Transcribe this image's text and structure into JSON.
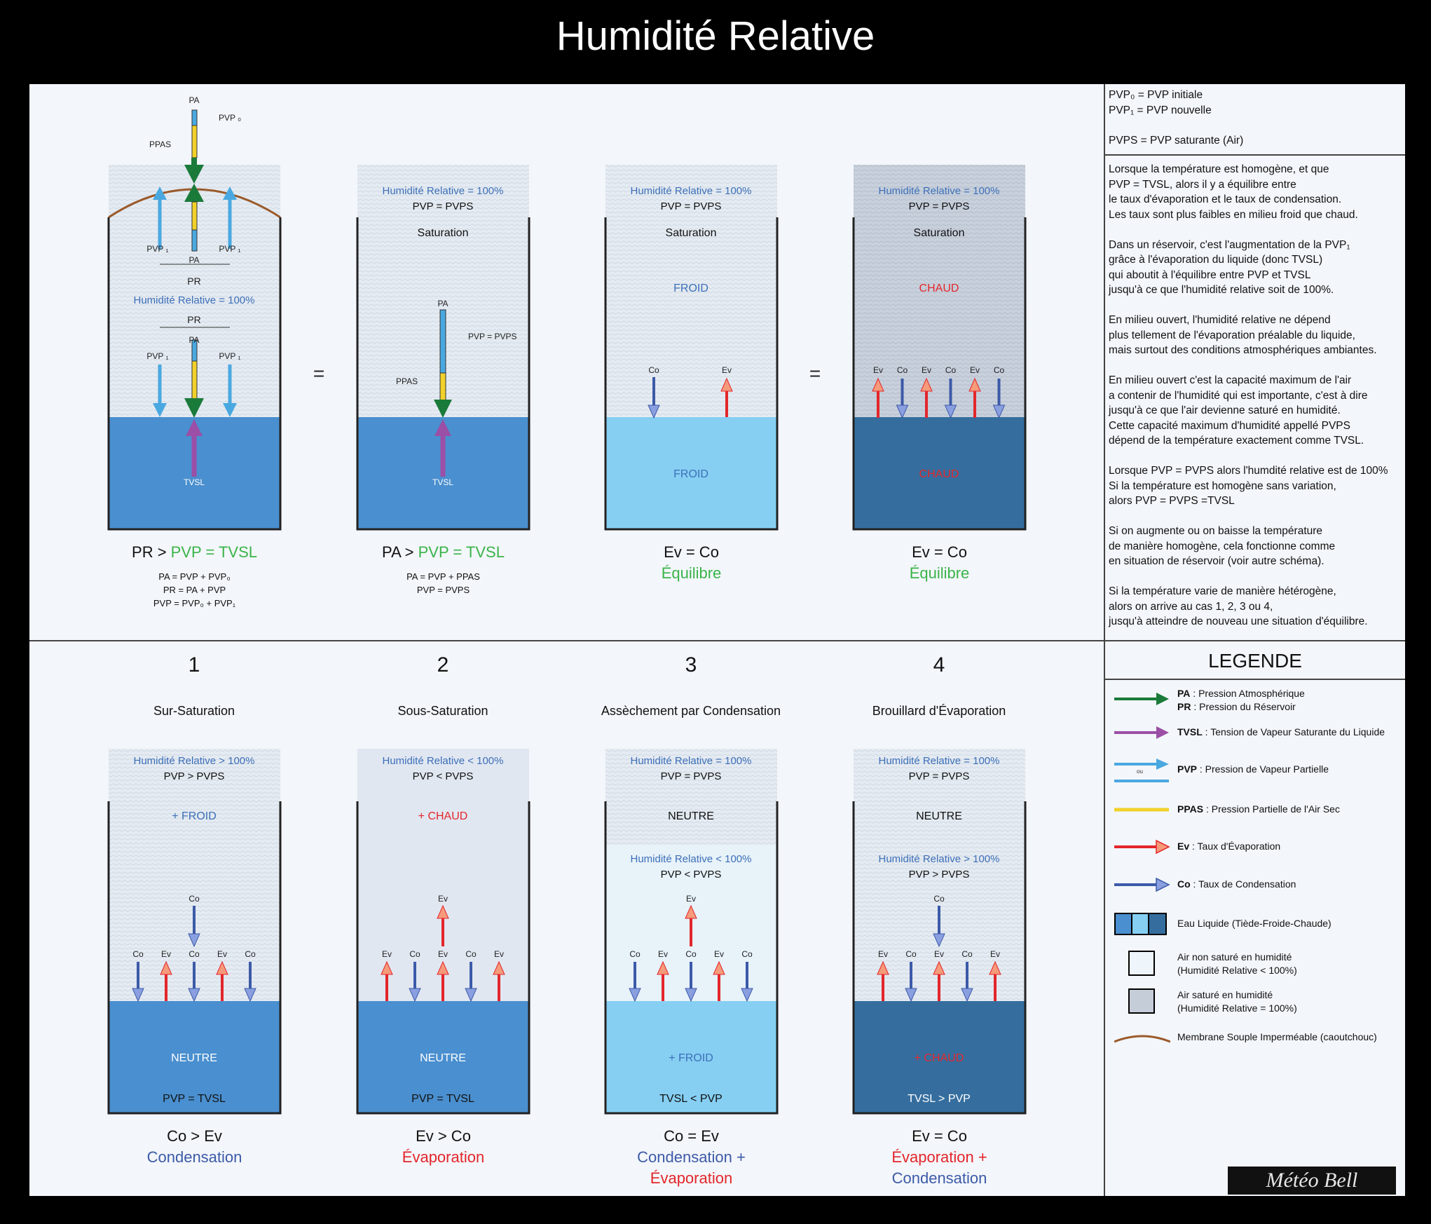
{
  "title": "Humidité Relative",
  "side": {
    "definitions": "PVP₀ = PVP initiale\nPVP₁ = PVP nouvelle\n\nPVPS = PVP saturante (Air)",
    "explanation": "Lorsque la température est homogène, et que\nPVP = TVSL, alors il y a équilibre entre\nle taux d'évaporation et le taux de condensation.\nLes taux sont plus faibles en milieu froid que chaud.\n\nDans un réservoir, c'est l'augmentation de la PVP₁\ngrâce à l'évaporation du liquide (donc TVSL)\nqui aboutit à l'équilibre entre PVP et TVSL\njusqu'à ce que l'humidité relative soit de 100%.\n\nEn milieu ouvert, l'humidité relative ne dépend\nplus tellement de l'évaporation préalable du liquide,\nmais surtout des conditions atmosphériques ambiantes.\n\nEn milieu ouvert c'est la capacité maximum de l'air\na contenir de l'humidité qui est importante, c'est à dire\njusqu'à ce que l'air devienne saturé en humidité.\nCette capacité maximum d'humidité appellé PVPS\ndépend de la température exactement comme TVSL.\n\nLorsque PVP = PVPS alors l'humdité relative est de 100%\nSi la température est homogène sans variation,\nalors PVP = PVPS =TVSL\n\nSi on augmente ou on baisse la température\nde manière homogène, cela fonctionne comme\nen situation de réservoir (voir autre schéma).\n\nSi la température varie de manière hétérogène,\nalors on arrive au cas 1, 2, 3 ou 4,\njusqu'à atteindre de nouveau une situation d'équilibre."
  },
  "legend": {
    "title": "LEGENDE",
    "items": [
      {
        "bold": "PA",
        "text": " : Pression Atmosphérique",
        "bold2": "PR",
        "text2": " : Pression du Réservoir",
        "color": "#1a7a3a"
      },
      {
        "bold": "TVSL",
        "text": " : Tension de Vapeur Saturante du Liquide",
        "color": "#9b4fa6"
      },
      {
        "bold": "PVP",
        "text": " : Pression de Vapeur Partielle",
        "ou": "ou",
        "color": "#4aa8e0"
      },
      {
        "bold": "PPAS",
        "text": " : Pression Partielle de l'Air Sec",
        "color": "#f2d12a"
      },
      {
        "bold": "Ev",
        "text": " : Taux d'Évaporation",
        "color": "#e3262b"
      },
      {
        "bold": "Co",
        "text": " : Taux de Condensation",
        "color": "#3c5aa8"
      },
      {
        "text": "Eau Liquide (Tiède-Froide-Chaude)"
      },
      {
        "text": "Air non saturé en humidité\n(Humidité Relative < 100%)"
      },
      {
        "text": "Air saturé en humidité\n(Humidité Relative = 100%)"
      },
      {
        "text": "Membrane Souple Imperméable (caoutchouc)",
        "color": "#9a5a2b"
      }
    ]
  },
  "logo": "Météo Bell",
  "top": {
    "eq_sign": "=",
    "tank1": {
      "pa": "PA",
      "pvp0": "PVP ₀",
      "ppas": "PPAS",
      "pvp1": "PVP ₁",
      "pr": "PR",
      "hr": "Humidité Relative = 100%",
      "tvsl": "TVSL",
      "cap_left": "PR > ",
      "cap_green": "PVP = TVSL",
      "formula": "PA = PVP + PVP₀\nPR = PA + PVP\nPVP = PVP₀ + PVP₁"
    },
    "tank2": {
      "hr": "Humidité Relative = 100%",
      "pvp": "PVP = PVPS",
      "state": "Saturation",
      "pa": "PA",
      "pvp_label": "PVP = PVPS",
      "ppas": "PPAS",
      "tvsl": "TVSL",
      "cap_left": "PA > ",
      "cap_green": "PVP = TVSL",
      "formula": "PA = PVP + PPAS\nPVP = PVPS"
    },
    "tank3": {
      "hr": "Humidité Relative = 100%",
      "pvp": "PVP = PVPS",
      "state": "Saturation",
      "air_temp": "FROID",
      "water_temp": "FROID",
      "co": "Co",
      "ev": "Ev",
      "cap_main": "Ev = Co",
      "cap_green": "Équilibre"
    },
    "tank4": {
      "hr": "Humidité Relative = 100%",
      "pvp": "PVP = PVPS",
      "state": "Saturation",
      "air_temp": "CHAUD",
      "water_temp": "CHAUD",
      "labels": [
        "Ev",
        "Co",
        "Ev",
        "Co",
        "Ev",
        "Co"
      ],
      "cap_main": "Ev = Co",
      "cap_green": "Équilibre"
    }
  },
  "bottom": [
    {
      "num": "1",
      "subtitle": "Sur-Saturation",
      "hr": "Humidité Relative > 100%",
      "pvp": "PVP > PVPS",
      "air": "+ FROID",
      "top_label": "Co",
      "labels": [
        "Co",
        "Ev",
        "Co",
        "Ev",
        "Co"
      ],
      "water": "NEUTRE",
      "rel": "PVP = TVSL",
      "cap_main": "Co > Ev",
      "cap_lines": [
        "Condensation"
      ]
    },
    {
      "num": "2",
      "subtitle": "Sous-Saturation",
      "hr": "Humidité Relative < 100%",
      "pvp": "PVP < PVPS",
      "air": "+ CHAUD",
      "top_label": "Ev",
      "labels": [
        "Ev",
        "Co",
        "Ev",
        "Co",
        "Ev"
      ],
      "water": "NEUTRE",
      "rel": "PVP = TVSL",
      "cap_main": "Ev > Co",
      "cap_lines": [
        "Évaporation"
      ]
    },
    {
      "num": "3",
      "subtitle": "Assèchement par Condensation",
      "hr": "Humidité Relative = 100%",
      "pvp": "PVP = PVPS",
      "air": "NEUTRE",
      "hr2": "Humidité Relative < 100%",
      "pvp2": "PVP < PVPS",
      "top_label": "Ev",
      "labels": [
        "Co",
        "Ev",
        "Co",
        "Ev",
        "Co"
      ],
      "water": "+ FROID",
      "rel": "TVSL < PVP",
      "cap_main": "Co = Ev",
      "cap_lines": [
        "Condensation +",
        "Évaporation"
      ]
    },
    {
      "num": "4",
      "subtitle": "Brouillard d'Évaporation",
      "hr": "Humidité Relative = 100%",
      "pvp": "PVP = PVPS",
      "air": "NEUTRE",
      "hr2": "Humidité Relative > 100%",
      "pvp2": "PVP > PVPS",
      "top_label": "Co",
      "labels": [
        "Ev",
        "Co",
        "Ev",
        "Co",
        "Ev"
      ],
      "water": "+ CHAUD",
      "rel": "TVSL > PVP",
      "cap_main": "Ev = Co",
      "cap_lines": [
        "Évaporation +",
        "Condensation"
      ]
    }
  ]
}
